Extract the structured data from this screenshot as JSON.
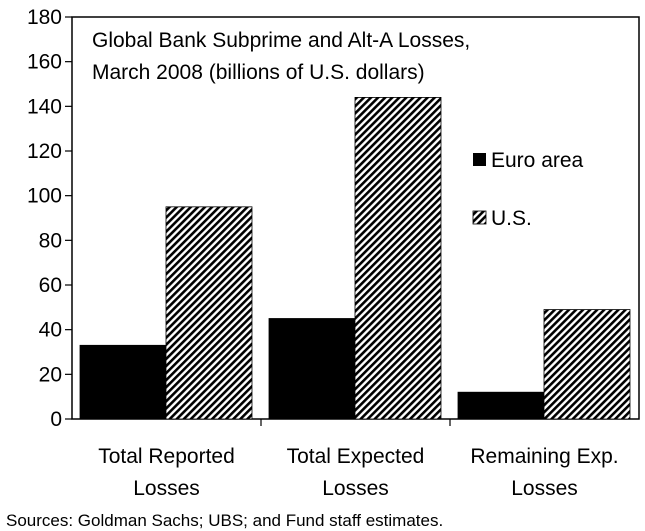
{
  "chart_data": {
    "type": "bar",
    "title_lines": [
      "Global Bank Subprime and Alt-A Losses,",
      "March 2008 (billions of U.S. dollars)"
    ],
    "categories": [
      [
        "Total Reported",
        "Losses"
      ],
      [
        "Total Expected",
        "Losses"
      ],
      [
        "Remaining Exp.",
        "Losses"
      ]
    ],
    "series": [
      {
        "name": "Euro area",
        "values": [
          33,
          45,
          12
        ],
        "fill": "#000000"
      },
      {
        "name": "U.S.",
        "values": [
          95,
          144,
          49
        ],
        "fill": "hatch"
      }
    ],
    "ylim": [
      0,
      180
    ],
    "yticks": [
      0,
      20,
      40,
      60,
      80,
      100,
      120,
      140,
      160,
      180
    ],
    "legend_position": "right",
    "grid": false
  },
  "source": "Sources:  Goldman Sachs; UBS; and Fund staff estimates."
}
